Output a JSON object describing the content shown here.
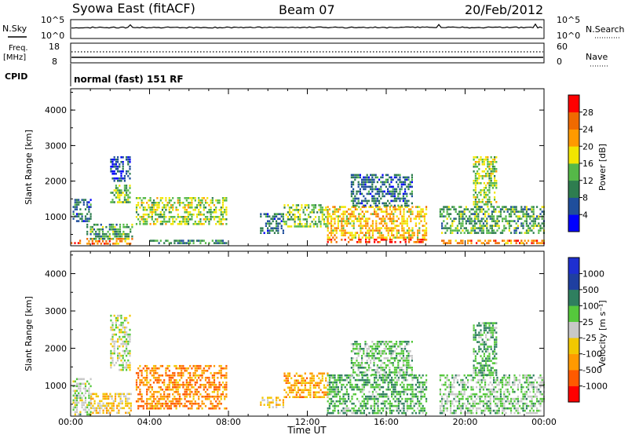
{
  "header": {
    "station": "Syowa East (fitACF)",
    "beam": "Beam 07",
    "date": "20/Feb/2012"
  },
  "top_panels": {
    "nsky_label": "N.Sky",
    "nsearch_label": "N.Search",
    "nsky_ticks": [
      "10^5",
      "10^0"
    ],
    "nsearch_ticks": [
      "10^5",
      "10^0"
    ],
    "freq_label": "Freq.",
    "freq_unit": "[MHz]",
    "freq_ticks": [
      "18",
      "8"
    ],
    "nave_label": "Nave",
    "nave_ticks": [
      "60",
      "0"
    ],
    "cpid_label": "CPID",
    "cpid_text": "normal (fast) 151 RF"
  },
  "x_ticks": [
    "00:00",
    "04:00",
    "08:00",
    "12:00",
    "16:00",
    "20:00",
    "00:00"
  ],
  "x_label": "Time UT",
  "colors": {
    "power": [
      "#0000ff",
      "#1f4e9c",
      "#2e7d4f",
      "#55b848",
      "#f2e600",
      "#ff9a00",
      "#f06a00",
      "#ff0000"
    ],
    "velocity": [
      "#ff0000",
      "#ff5a00",
      "#ff9a00",
      "#f2c800",
      "#c8c8c8",
      "#55c83c",
      "#2f7f5f",
      "#1f3fa0",
      "#1e2fd0"
    ]
  },
  "chart_data": [
    {
      "type": "heatmap",
      "title": "",
      "xlabel": "",
      "ylabel": "Slant Range [km]",
      "xlim": [
        0,
        24
      ],
      "ylim": [
        180,
        4600
      ],
      "x_unit": "hours UT",
      "y_ticks": [
        1000,
        2000,
        3000,
        4000
      ],
      "colorbar": {
        "label": "Power [dB]",
        "ticks": [
          "28",
          "24",
          "20",
          "16",
          "12",
          "8",
          "4"
        ],
        "range": [
          0,
          32
        ]
      },
      "series": [
        {
          "x_range": [
            0.0,
            0.5
          ],
          "y_range": [
            250,
            350
          ],
          "value": 26
        },
        {
          "x_range": [
            0.1,
            1.0
          ],
          "y_range": [
            900,
            1500
          ],
          "value": 8
        },
        {
          "x_range": [
            0.8,
            3.1
          ],
          "y_range": [
            250,
            400
          ],
          "value": 24
        },
        {
          "x_range": [
            0.8,
            3.1
          ],
          "y_range": [
            400,
            800
          ],
          "value": 12
        },
        {
          "x_range": [
            2.0,
            3.0
          ],
          "y_range": [
            1400,
            1900
          ],
          "value": 14
        },
        {
          "x_range": [
            2.0,
            3.0
          ],
          "y_range": [
            2000,
            2700
          ],
          "value": 6
        },
        {
          "x_range": [
            3.3,
            7.9
          ],
          "y_range": [
            800,
            1550
          ],
          "value": 16
        },
        {
          "x_range": [
            4.0,
            7.9
          ],
          "y_range": [
            250,
            350
          ],
          "value": 10
        },
        {
          "x_range": [
            9.6,
            10.8
          ],
          "y_range": [
            550,
            1100
          ],
          "value": 8
        },
        {
          "x_range": [
            10.8,
            13.0
          ],
          "y_range": [
            700,
            1350
          ],
          "value": 14
        },
        {
          "x_range": [
            13.0,
            18.0
          ],
          "y_range": [
            250,
            380
          ],
          "value": 28
        },
        {
          "x_range": [
            13.0,
            18.0
          ],
          "y_range": [
            380,
            1300
          ],
          "value": 20
        },
        {
          "x_range": [
            14.2,
            17.3
          ],
          "y_range": [
            1300,
            2200
          ],
          "value": 8
        },
        {
          "x_range": [
            18.7,
            24.0
          ],
          "y_range": [
            250,
            350
          ],
          "value": 24
        },
        {
          "x_range": [
            18.7,
            24.0
          ],
          "y_range": [
            550,
            1300
          ],
          "value": 12
        },
        {
          "x_range": [
            20.4,
            21.6
          ],
          "y_range": [
            1300,
            2700
          ],
          "value": 16
        }
      ]
    },
    {
      "type": "heatmap",
      "title": "",
      "xlabel": "Time UT",
      "ylabel": "Slant Range [km]",
      "xlim": [
        0,
        24
      ],
      "ylim": [
        180,
        4600
      ],
      "x_unit": "hours UT",
      "y_ticks": [
        1000,
        2000,
        3000,
        4000
      ],
      "colorbar": {
        "label": "Velocity [m s⁻¹]",
        "ticks": [
          "1000",
          "500",
          "100",
          "25",
          "-25",
          "-100",
          "-500",
          "-1000"
        ],
        "range": [
          -1000,
          1000
        ]
      },
      "series": [
        {
          "x_range": [
            0.1,
            1.0
          ],
          "y_range": [
            250,
            1200
          ],
          "value": 100
        },
        {
          "x_range": [
            1.0,
            3.1
          ],
          "y_range": [
            250,
            800
          ],
          "value": -200
        },
        {
          "x_range": [
            2.0,
            3.0
          ],
          "y_range": [
            1400,
            2900
          ],
          "value": 0
        },
        {
          "x_range": [
            3.3,
            7.9
          ],
          "y_range": [
            400,
            1550
          ],
          "value": -500
        },
        {
          "x_range": [
            9.6,
            10.8
          ],
          "y_range": [
            400,
            700
          ],
          "value": -150
        },
        {
          "x_range": [
            10.8,
            13.0
          ],
          "y_range": [
            700,
            1350
          ],
          "value": -400
        },
        {
          "x_range": [
            13.0,
            18.0
          ],
          "y_range": [
            250,
            1300
          ],
          "value": 300
        },
        {
          "x_range": [
            14.2,
            17.3
          ],
          "y_range": [
            1300,
            2200
          ],
          "value": 200
        },
        {
          "x_range": [
            18.7,
            24.0
          ],
          "y_range": [
            250,
            1300
          ],
          "value": 150
        },
        {
          "x_range": [
            20.4,
            21.6
          ],
          "y_range": [
            1300,
            2700
          ],
          "value": 300
        }
      ]
    }
  ]
}
